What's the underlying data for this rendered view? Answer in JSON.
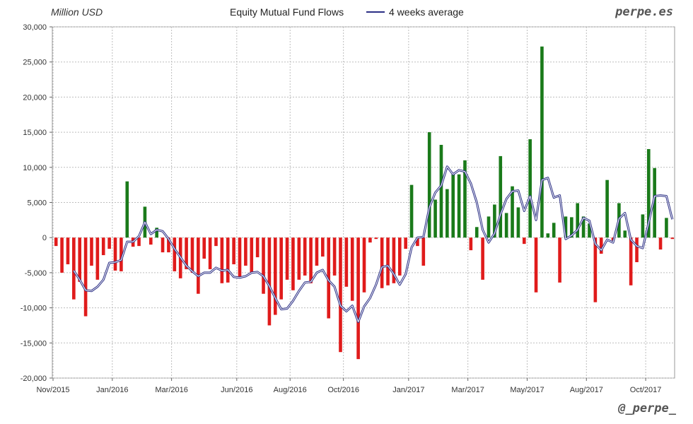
{
  "header": {
    "unit": "Million USD",
    "title": "Equity Mutual Fund Flows",
    "legend_label": "4 weeks average",
    "brand": "perpe.es"
  },
  "footer": {
    "handle": "@_perpe_"
  },
  "colors": {
    "positive": "#1a7a1a",
    "negative": "#e01b1b",
    "average_line": "#2b2f85",
    "grid": "#bdbdbd"
  },
  "chart_data": {
    "type": "bar",
    "title": "Equity Mutual Fund Flows",
    "ylabel": "Million USD",
    "ylim": [
      -20000,
      30000
    ],
    "yticks": [
      30000,
      25000,
      20000,
      15000,
      10000,
      5000,
      0,
      -5000,
      -10000,
      -15000,
      -20000
    ],
    "ytick_labels": [
      "30,000",
      "25,000",
      "20,000",
      "15,000",
      "10,000",
      "5,000",
      "0",
      "-5,000",
      "-10,000",
      "-15,000",
      "-20,000"
    ],
    "xtick_labels": [
      "Nov/2015",
      "Jan/2016",
      "Mar/2016",
      "Jun/2016",
      "Aug/2016",
      "Oct/2016",
      "Jan/2017",
      "Mar/2017",
      "May/2017",
      "Aug/2017",
      "Oct/2017"
    ],
    "xtick_positions": [
      0,
      10,
      20,
      31,
      40,
      49,
      60,
      70,
      80,
      90,
      100
    ],
    "grid": true,
    "legend_position": "top",
    "series": [
      {
        "name": "Equity Mutual Fund Flows",
        "values": [
          -1200,
          -5000,
          -3800,
          -8800,
          -6300,
          -11200,
          -4000,
          -6000,
          -2500,
          -1600,
          -4700,
          -4800,
          8000,
          -1300,
          -1200,
          4400,
          -1000,
          1400,
          -2100,
          -2100,
          -4800,
          -5800,
          -4500,
          -5000,
          -8000,
          -3000,
          -4500,
          -1200,
          -6500,
          -6400,
          -3800,
          -5800,
          -4000,
          -5000,
          -2800,
          -8000,
          -12500,
          -11000,
          -8800,
          -6000,
          -7500,
          -6000,
          -5400,
          -6500,
          -4000,
          -2700,
          -11500,
          -5400,
          -16300,
          -7000,
          -9000,
          -17300,
          -7800,
          -700,
          -200,
          -7200,
          -6800,
          -6500,
          -5400,
          -1600,
          7500,
          -1200,
          -4000,
          15000,
          5400,
          13200,
          6900,
          9000,
          9000,
          11000,
          -1800,
          1500,
          -6000,
          3000,
          4700,
          11600,
          3500,
          7300,
          4300,
          -900,
          14000,
          -7800,
          27200,
          600,
          2100,
          -6400,
          3000,
          2900,
          4900,
          3000,
          2000,
          -9200,
          -2300,
          8200,
          -400,
          4900,
          1000,
          -6800,
          -3500,
          3300,
          12600,
          9900,
          -1700,
          2800,
          -200
        ],
        "average": [
          null,
          null,
          null,
          -4700,
          -6000,
          -7500,
          -7600,
          -7000,
          -6000,
          -3600,
          -3500,
          -3200,
          -600,
          -600,
          200,
          2200,
          500,
          1100,
          900,
          -200,
          -1600,
          -2800,
          -4000,
          -4800,
          -5500,
          -5000,
          -5000,
          -4300,
          -4700,
          -4600,
          -5600,
          -5700,
          -5500,
          -5000,
          -4900,
          -5500,
          -6900,
          -8600,
          -10200,
          -10100,
          -9000,
          -7600,
          -6400,
          -6300,
          -5000,
          -4600,
          -6100,
          -7000,
          -9700,
          -10500,
          -9700,
          -12000,
          -9800,
          -8600,
          -6700,
          -4200,
          -4000,
          -5200,
          -6700,
          -5200,
          -1400,
          0,
          100,
          4300,
          6400,
          7400,
          10100,
          9000,
          9600,
          9400,
          7700,
          5000,
          1100,
          -700,
          600,
          3300,
          5500,
          6600,
          6700,
          3800,
          5900,
          2500,
          8200,
          8500,
          5700,
          6000,
          -200,
          300,
          1100,
          2800,
          2400,
          -900,
          -1800,
          -300,
          -700,
          2700,
          3500,
          -300,
          -1200,
          -1500,
          2100,
          5900,
          6000,
          5900,
          2600
        ]
      }
    ]
  }
}
